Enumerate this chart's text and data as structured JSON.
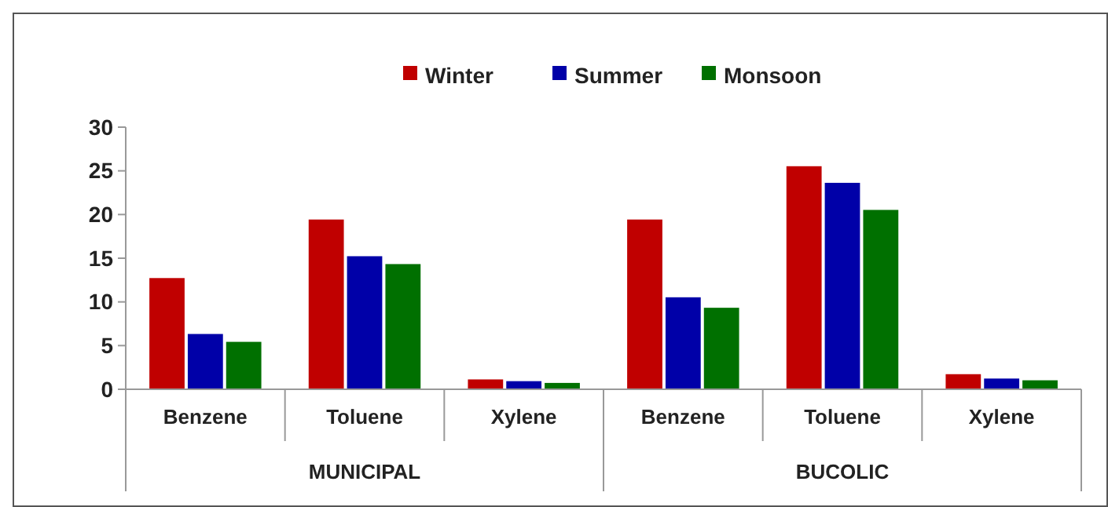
{
  "chart_data": {
    "type": "bar",
    "categories": [
      "Benzene",
      "Toluene",
      "Xylene",
      "Benzene",
      "Toluene",
      "Xylene"
    ],
    "series": [
      {
        "name": "Winter",
        "color": "#c00000",
        "values": [
          12.8,
          19.5,
          1.2,
          19.5,
          25.6,
          1.8
        ]
      },
      {
        "name": "Summer",
        "color": "#0000a8",
        "values": [
          6.4,
          15.3,
          1.0,
          10.6,
          23.7,
          1.3
        ]
      },
      {
        "name": "Monsoon",
        "color": "#007000",
        "values": [
          5.5,
          14.4,
          0.8,
          9.4,
          20.6,
          1.1
        ]
      }
    ],
    "ylim": [
      0,
      30
    ],
    "yticks": [
      0,
      5,
      10,
      15,
      20,
      25,
      30
    ],
    "grid": false,
    "legend": "top",
    "annotations": [
      "MUNICIPAL",
      "BUCOLIC"
    ]
  }
}
